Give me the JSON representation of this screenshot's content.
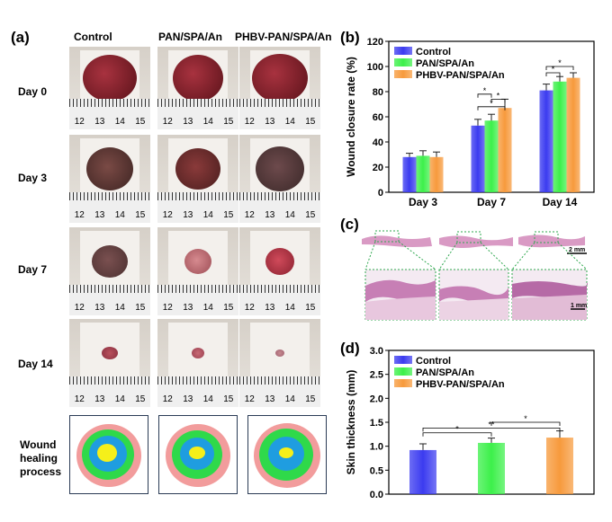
{
  "panel_a": {
    "label": "(a)",
    "columns": [
      "Control",
      "PAN/SPA/An",
      "PHBV-PAN/SPA/An"
    ],
    "rows": [
      "Day 0",
      "Day 3",
      "Day 7",
      "Day 14"
    ],
    "ruler_numbers": [
      [
        "12",
        "13",
        "14",
        "15"
      ],
      [
        "12",
        "13",
        "14",
        "15"
      ],
      [
        "12",
        "13",
        "14",
        "15"
      ],
      [
        "12",
        "13",
        "14",
        "15"
      ]
    ],
    "healing_label_lines": [
      "Wound",
      "healing",
      "process"
    ],
    "colors": {
      "yellow": "#f5ef1a",
      "blue": "#1f9de0",
      "green": "#2fd94a",
      "pink": "#f29c9c"
    }
  },
  "panel_b": {
    "label": "(b)"
  },
  "panel_c": {
    "label": "(c)",
    "scale_top": "2 mm",
    "scale_bottom": "1 mm"
  },
  "panel_d": {
    "label": "(d)"
  },
  "chart_data": [
    {
      "type": "bar",
      "panel": "(b)",
      "ylabel": "Wound closure rate (%)",
      "xlabel": "",
      "categories": [
        "Day 3",
        "Day 7",
        "Day 14"
      ],
      "series": [
        {
          "name": "Control",
          "color": "#3b3bf0",
          "values": [
            28,
            53,
            81
          ],
          "errors": [
            3,
            5,
            5
          ]
        },
        {
          "name": "PAN/SPA/An",
          "color": "#3cf04a",
          "values": [
            29,
            57,
            88
          ],
          "errors": [
            4,
            5,
            4
          ]
        },
        {
          "name": "PHBV-PAN/SPA/An",
          "color": "#f79a3c",
          "values": [
            28,
            67,
            91
          ],
          "errors": [
            4,
            7,
            4
          ]
        }
      ],
      "ylim": [
        0,
        120
      ],
      "yticks": [
        "0",
        "20",
        "40",
        "60",
        "80",
        "100",
        "120"
      ],
      "significance": [
        "*",
        "*",
        "*",
        "*",
        "*"
      ]
    },
    {
      "type": "bar",
      "panel": "(d)",
      "ylabel": "Skin thickness (mm)",
      "xlabel": "",
      "categories": [
        "Control",
        "PAN/SPA/An",
        "PHBV-PAN/SPA/An"
      ],
      "series": [
        {
          "name": "Skin thickness",
          "values": [
            0.92,
            1.07,
            1.18
          ],
          "errors": [
            0.13,
            0.1,
            0.14
          ]
        }
      ],
      "bar_colors": [
        "#3b3bf0",
        "#3cf04a",
        "#f79a3c"
      ],
      "legend": [
        "Control",
        "PAN/SPA/An",
        "PHBV-PAN/SPA/An"
      ],
      "ylim": [
        0,
        3.0
      ],
      "yticks": [
        "0.0",
        "0.5",
        "1.0",
        "1.5",
        "2.0",
        "2.5",
        "3.0"
      ],
      "significance": [
        "*",
        "**",
        "*"
      ]
    }
  ]
}
